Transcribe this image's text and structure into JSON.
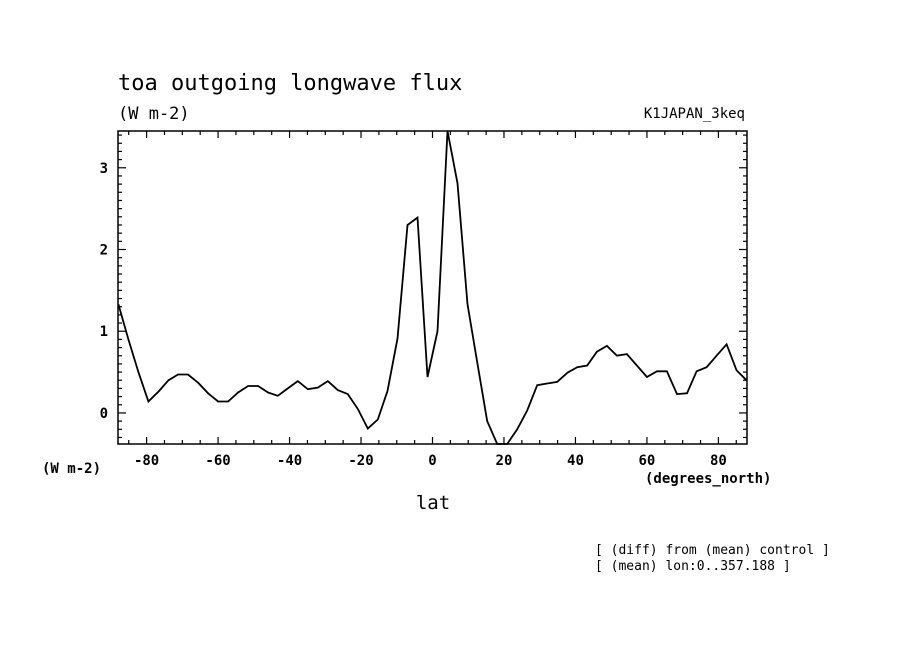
{
  "chart_data": {
    "type": "line",
    "title": "toa outgoing longwave flux",
    "units_top": "(W m-2)",
    "run_label": "K1JAPAN_3keq",
    "ylabel_units": "(W m-2)",
    "xlabel_units": "(degrees_north)",
    "xlabel": "lat",
    "notes": [
      "[ (diff) from (mean) control ]",
      "[ (mean) lon:0..357.188 ]"
    ],
    "xlim": [
      -88,
      88
    ],
    "ylim": [
      -0.38,
      3.45
    ],
    "xticks": [
      -80,
      -60,
      -40,
      -20,
      0,
      20,
      40,
      60,
      80
    ],
    "yticks": [
      0,
      1,
      2,
      3
    ],
    "grid": false,
    "series": [
      {
        "x": [
          -87.9,
          -85.1,
          -82.3,
          -79.5,
          -76.7,
          -73.9,
          -71.2,
          -68.4,
          -65.6,
          -62.8,
          -60.0,
          -57.2,
          -54.4,
          -51.6,
          -48.8,
          -46.0,
          -43.3,
          -40.5,
          -37.7,
          -34.9,
          -32.1,
          -29.3,
          -26.5,
          -23.7,
          -20.9,
          -18.1,
          -15.3,
          -12.6,
          -9.8,
          -7.0,
          -4.2,
          -1.4,
          1.4,
          4.2,
          7.0,
          9.8,
          12.6,
          15.3,
          18.1,
          20.9,
          23.7,
          26.5,
          29.3,
          32.1,
          34.9,
          37.7,
          40.5,
          43.3,
          46.0,
          48.8,
          51.6,
          54.4,
          57.2,
          60.0,
          62.8,
          65.6,
          68.4,
          71.2,
          73.9,
          76.7,
          79.5,
          82.3,
          85.1,
          87.9
        ],
        "values": [
          1.33,
          0.9,
          0.5,
          0.14,
          0.26,
          0.4,
          0.47,
          0.47,
          0.37,
          0.24,
          0.14,
          0.14,
          0.25,
          0.33,
          0.33,
          0.25,
          0.21,
          0.3,
          0.39,
          0.29,
          0.31,
          0.39,
          0.28,
          0.23,
          0.05,
          -0.19,
          -0.08,
          0.27,
          0.91,
          2.3,
          2.39,
          0.44,
          1.0,
          3.45,
          2.81,
          1.33,
          0.6,
          -0.1,
          -0.38,
          -0.38,
          -0.2,
          0.03,
          0.34,
          0.36,
          0.38,
          0.49,
          0.56,
          0.58,
          0.75,
          0.82,
          0.7,
          0.72,
          0.58,
          0.44,
          0.51,
          0.51,
          0.23,
          0.24,
          0.51,
          0.56,
          0.7,
          0.84,
          0.52,
          0.4
        ]
      }
    ]
  }
}
